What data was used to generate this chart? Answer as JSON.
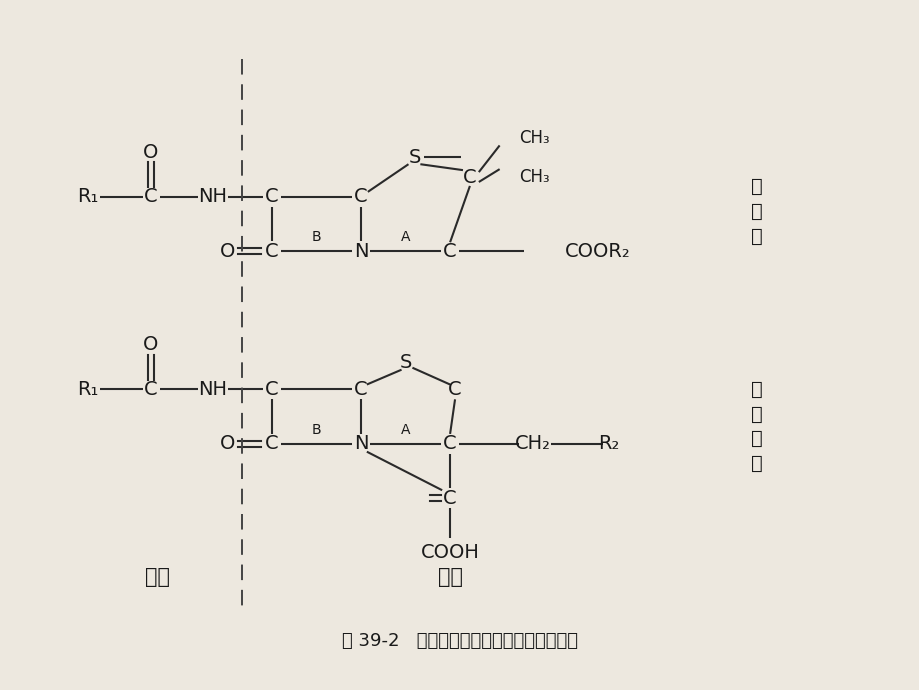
{
  "bg_color": "#ede8df",
  "text_color": "#1a1a1a",
  "title": "图 39-2   青霉素类抗生素的基本化学结构图",
  "label_penicillin_1": "青",
  "label_penicillin_2": "霉",
  "label_penicillin_3": "素",
  "label_cephalosporin_1": "头",
  "label_cephalosporin_2": "孢",
  "label_cephalosporin_3": "菌",
  "label_cephalosporin_4": "素",
  "label_side_chain": "侧链",
  "label_core": "主核",
  "font_size_main": 14,
  "font_size_small": 11,
  "font_size_label_b": 10,
  "font_size_title": 13,
  "lw": 1.5
}
